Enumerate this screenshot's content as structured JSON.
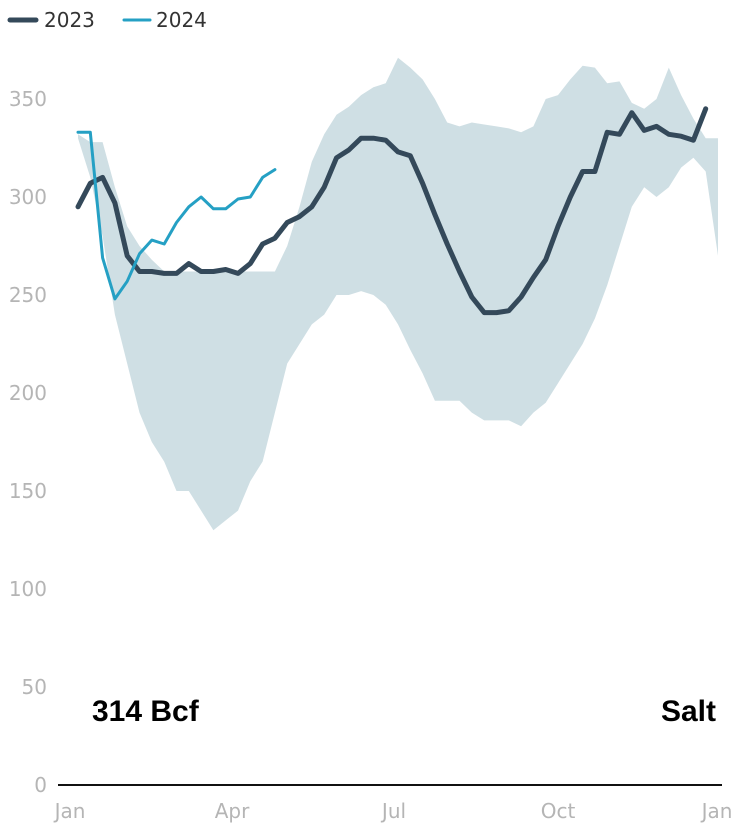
{
  "chart_data": {
    "type": "line",
    "x_ticks": [
      "Jan",
      "Apr",
      "Jul",
      "Oct",
      "Jan"
    ],
    "y_ticks": [
      0,
      50,
      100,
      150,
      200,
      250,
      300,
      350
    ],
    "ylim": [
      0,
      370
    ],
    "grid": false,
    "legend_position": "top-left",
    "annotations": {
      "value_label": "314 Bcf",
      "region_label": "Salt"
    },
    "band": {
      "weeks": [
        0,
        1,
        2,
        3,
        4,
        5,
        6,
        7,
        8,
        9,
        10,
        11,
        12,
        13,
        14,
        15,
        16,
        17,
        18,
        19,
        20,
        21,
        22,
        23,
        24,
        25,
        26,
        27,
        28,
        29,
        30,
        31,
        32,
        33,
        34,
        35,
        36,
        37,
        38,
        39,
        40,
        41,
        42,
        43,
        44,
        45,
        46,
        47,
        48,
        49,
        50,
        51,
        52
      ],
      "upper": [
        332,
        328,
        328,
        305,
        285,
        275,
        268,
        262,
        262,
        262,
        262,
        262,
        262,
        262,
        262,
        262,
        262,
        275,
        295,
        318,
        332,
        342,
        346,
        352,
        356,
        358,
        371,
        366,
        360,
        350,
        338,
        336,
        338,
        337,
        336,
        335,
        333,
        336,
        350,
        352,
        360,
        367,
        366,
        358,
        359,
        348,
        345,
        350,
        366,
        352,
        340,
        330,
        330
      ],
      "lower": [
        330,
        310,
        280,
        240,
        215,
        190,
        175,
        165,
        150,
        150,
        140,
        130,
        135,
        140,
        155,
        165,
        190,
        215,
        225,
        235,
        240,
        250,
        250,
        252,
        250,
        245,
        235,
        222,
        210,
        196,
        196,
        196,
        190,
        186,
        186,
        186,
        183,
        190,
        195,
        205,
        215,
        225,
        238,
        255,
        275,
        295,
        305,
        300,
        305,
        315,
        320,
        313,
        270
      ]
    },
    "series": [
      {
        "name": "2023",
        "color": "#34495a",
        "weeks": [
          0,
          1,
          2,
          3,
          4,
          5,
          6,
          7,
          8,
          9,
          10,
          11,
          12,
          13,
          14,
          15,
          16,
          17,
          18,
          19,
          20,
          21,
          22,
          23,
          24,
          25,
          26,
          27,
          28,
          29,
          30,
          31,
          32,
          33,
          34,
          35,
          36,
          37,
          38,
          39,
          40,
          41,
          42,
          43,
          44,
          45,
          46,
          47,
          48,
          49,
          50,
          51,
          52
        ],
        "values": [
          295,
          307,
          310,
          297,
          270,
          262,
          262,
          261,
          261,
          266,
          262,
          262,
          263,
          261,
          266,
          276,
          279,
          287,
          290,
          295,
          305,
          320,
          324,
          330,
          330,
          329,
          323,
          321,
          307,
          291,
          276,
          262,
          249,
          241,
          241,
          242,
          249,
          259,
          268,
          285,
          300,
          313,
          313,
          333,
          332,
          343,
          334,
          336,
          332,
          331,
          329,
          345,
          null
        ]
      },
      {
        "name": "2024",
        "color": "#25a0c4",
        "weeks": [
          0,
          1,
          2,
          3,
          4,
          5,
          6,
          7,
          8,
          9,
          10,
          11,
          12,
          13,
          14,
          15,
          16
        ],
        "values": [
          333,
          333,
          269,
          248,
          257,
          271,
          278,
          276,
          287,
          295,
          300,
          294,
          294,
          299,
          300,
          310,
          314
        ]
      }
    ]
  }
}
